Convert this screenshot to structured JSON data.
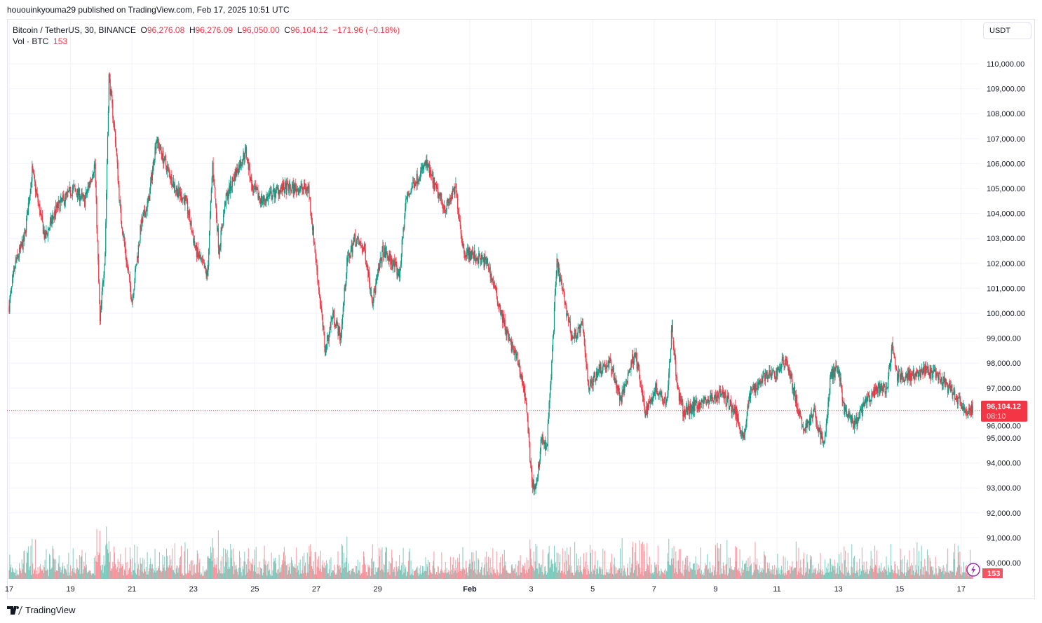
{
  "publisher_line": "hououinkyouma29 published on TradingView.com, Feb 17, 2025 10:51 UTC",
  "legend": {
    "symbol": "Bitcoin / TetherUS, 30, BINANCE",
    "open_label": "O",
    "open": "96,276.08",
    "high_label": "H",
    "high": "96,276.09",
    "low_label": "L",
    "low": "96,050.00",
    "close_label": "C",
    "close": "96,104.12",
    "change": "−171.96 (−0.18%)",
    "vol_label": "Vol · BTC",
    "vol": "153"
  },
  "currency_button": "USDT",
  "footer_brand": "TradingView",
  "colors": {
    "up": "#089981",
    "down": "#f23645",
    "grid": "#f0f3fa"
  },
  "chart_data": {
    "type": "candlestick",
    "interval": "30",
    "ylim": [
      89500,
      110500
    ],
    "price_ticks": [
      "110,000.00",
      "109,000.00",
      "108,000.00",
      "107,000.00",
      "106,000.00",
      "105,000.00",
      "104,000.00",
      "103,000.00",
      "102,000.00",
      "101,000.00",
      "100,000.00",
      "99,000.00",
      "98,000.00",
      "97,000.00",
      "96,000.00",
      "95,000.00",
      "94,000.00",
      "93,000.00",
      "92,000.00",
      "91,000.00",
      "90,000.00"
    ],
    "time_ticks": [
      {
        "date": "2025-01-17",
        "label": "17"
      },
      {
        "date": "2025-01-19",
        "label": "19"
      },
      {
        "date": "2025-01-21",
        "label": "21"
      },
      {
        "date": "2025-01-23",
        "label": "23"
      },
      {
        "date": "2025-01-25",
        "label": "25"
      },
      {
        "date": "2025-01-27",
        "label": "27"
      },
      {
        "date": "2025-01-29",
        "label": "29"
      },
      {
        "date": "2025-02-01",
        "label": "Feb"
      },
      {
        "date": "2025-02-03",
        "label": "3"
      },
      {
        "date": "2025-02-05",
        "label": "5"
      },
      {
        "date": "2025-02-07",
        "label": "7"
      },
      {
        "date": "2025-02-09",
        "label": "9"
      },
      {
        "date": "2025-02-11",
        "label": "11"
      },
      {
        "date": "2025-02-13",
        "label": "13"
      },
      {
        "date": "2025-02-15",
        "label": "15"
      },
      {
        "date": "2025-02-17",
        "label": "17"
      }
    ],
    "last_price": "96,104.12",
    "countdown": "08:10",
    "last_volume": "153",
    "approx_close_path": [
      [
        "2025-01-17T00:00",
        100300
      ],
      [
        "2025-01-17T05:00",
        102000
      ],
      [
        "2025-01-17T12:00",
        103000
      ],
      [
        "2025-01-17T18:00",
        105700
      ],
      [
        "2025-01-18T04:00",
        103000
      ],
      [
        "2025-01-18T13:00",
        104200
      ],
      [
        "2025-01-19T02:00",
        105000
      ],
      [
        "2025-01-19T11:00",
        104500
      ],
      [
        "2025-01-19T19:00",
        106000
      ],
      [
        "2025-01-19T23:00",
        99600
      ],
      [
        "2025-01-20T03:00",
        102500
      ],
      [
        "2025-01-20T06:00",
        109500
      ],
      [
        "2025-01-20T11:00",
        107000
      ],
      [
        "2025-01-20T15:00",
        104000
      ],
      [
        "2025-01-20T20:00",
        102000
      ],
      [
        "2025-01-21T00:00",
        100500
      ],
      [
        "2025-01-21T07:00",
        103500
      ],
      [
        "2025-01-21T13:00",
        104500
      ],
      [
        "2025-01-21T19:00",
        107000
      ],
      [
        "2025-01-22T02:00",
        106000
      ],
      [
        "2025-01-22T10:00",
        105000
      ],
      [
        "2025-01-22T18:00",
        104500
      ],
      [
        "2025-01-23T02:00",
        102500
      ],
      [
        "2025-01-23T11:00",
        101500
      ],
      [
        "2025-01-23T15:00",
        106000
      ],
      [
        "2025-01-23T20:00",
        102500
      ],
      [
        "2025-01-24T01:00",
        104500
      ],
      [
        "2025-01-24T08:00",
        105500
      ],
      [
        "2025-01-24T17:00",
        106500
      ],
      [
        "2025-01-24T22:00",
        105000
      ],
      [
        "2025-01-25T06:00",
        104500
      ],
      [
        "2025-01-25T20:00",
        105000
      ],
      [
        "2025-01-26T07:00",
        105000
      ],
      [
        "2025-01-26T18:00",
        105000
      ],
      [
        "2025-01-26T22:00",
        103000
      ],
      [
        "2025-01-27T02:00",
        101000
      ],
      [
        "2025-01-27T07:00",
        98500
      ],
      [
        "2025-01-27T13:00",
        100000
      ],
      [
        "2025-01-27T19:00",
        99000
      ],
      [
        "2025-01-28T00:00",
        102000
      ],
      [
        "2025-01-28T06:00",
        103000
      ],
      [
        "2025-01-28T14:00",
        102500
      ],
      [
        "2025-01-28T20:00",
        100500
      ],
      [
        "2025-01-29T04:00",
        102500
      ],
      [
        "2025-01-29T12:00",
        102000
      ],
      [
        "2025-01-29T17:00",
        101500
      ],
      [
        "2025-01-29T22:00",
        104500
      ],
      [
        "2025-01-30T04:00",
        105200
      ],
      [
        "2025-01-30T14:00",
        106000
      ],
      [
        "2025-01-30T21:00",
        105000
      ],
      [
        "2025-01-31T05:00",
        104200
      ],
      [
        "2025-01-31T13:00",
        105000
      ],
      [
        "2025-01-31T19:00",
        102500
      ],
      [
        "2025-02-01T03:00",
        102300
      ],
      [
        "2025-02-01T14:00",
        102000
      ],
      [
        "2025-02-01T22:00",
        100500
      ],
      [
        "2025-02-02T06:00",
        99000
      ],
      [
        "2025-02-02T14:00",
        98000
      ],
      [
        "2025-02-02T20:00",
        96500
      ],
      [
        "2025-02-03T00:00",
        93500
      ],
      [
        "2025-02-03T03:00",
        92700
      ],
      [
        "2025-02-03T08:00",
        95000
      ],
      [
        "2025-02-03T12:00",
        94500
      ],
      [
        "2025-02-03T16:00",
        98000
      ],
      [
        "2025-02-03T20:00",
        102000
      ],
      [
        "2025-02-04T02:00",
        100500
      ],
      [
        "2025-02-04T08:00",
        99000
      ],
      [
        "2025-02-04T16:00",
        99500
      ],
      [
        "2025-02-04T21:00",
        97000
      ],
      [
        "2025-02-05T05:00",
        97800
      ],
      [
        "2025-02-05T14:00",
        98000
      ],
      [
        "2025-02-05T22:00",
        96500
      ],
      [
        "2025-02-06T09:00",
        98500
      ],
      [
        "2025-02-06T17:00",
        96000
      ],
      [
        "2025-02-07T01:00",
        97000
      ],
      [
        "2025-02-07T10:00",
        96500
      ],
      [
        "2025-02-07T14:00",
        99500
      ],
      [
        "2025-02-07T18:00",
        97000
      ],
      [
        "2025-02-07T23:00",
        96000
      ],
      [
        "2025-02-08T07:00",
        96300
      ],
      [
        "2025-02-08T18:00",
        96500
      ],
      [
        "2025-02-09T05:00",
        96800
      ],
      [
        "2025-02-09T16:00",
        96000
      ],
      [
        "2025-02-09T22:00",
        95000
      ],
      [
        "2025-02-10T03:00",
        96800
      ],
      [
        "2025-02-10T14:00",
        97500
      ],
      [
        "2025-02-10T22:00",
        97500
      ],
      [
        "2025-02-11T07:00",
        98200
      ],
      [
        "2025-02-11T15:00",
        96500
      ],
      [
        "2025-02-11T20:00",
        95300
      ],
      [
        "2025-02-12T05:00",
        96000
      ],
      [
        "2025-02-12T13:00",
        94700
      ],
      [
        "2025-02-12T18:00",
        97500
      ],
      [
        "2025-02-13T00:00",
        97800
      ],
      [
        "2025-02-13T05:00",
        96000
      ],
      [
        "2025-02-13T13:00",
        95500
      ],
      [
        "2025-02-13T22:00",
        96500
      ],
      [
        "2025-02-14T09:00",
        97000
      ],
      [
        "2025-02-14T14:00",
        97000
      ],
      [
        "2025-02-14T18:00",
        98600
      ],
      [
        "2025-02-14T22:00",
        97500
      ],
      [
        "2025-02-15T09:00",
        97500
      ],
      [
        "2025-02-15T20:00",
        97700
      ],
      [
        "2025-02-16T07:00",
        97400
      ],
      [
        "2025-02-16T18:00",
        96800
      ],
      [
        "2025-02-17T02:00",
        96100
      ],
      [
        "2025-02-17T09:00",
        96104.12
      ]
    ]
  }
}
